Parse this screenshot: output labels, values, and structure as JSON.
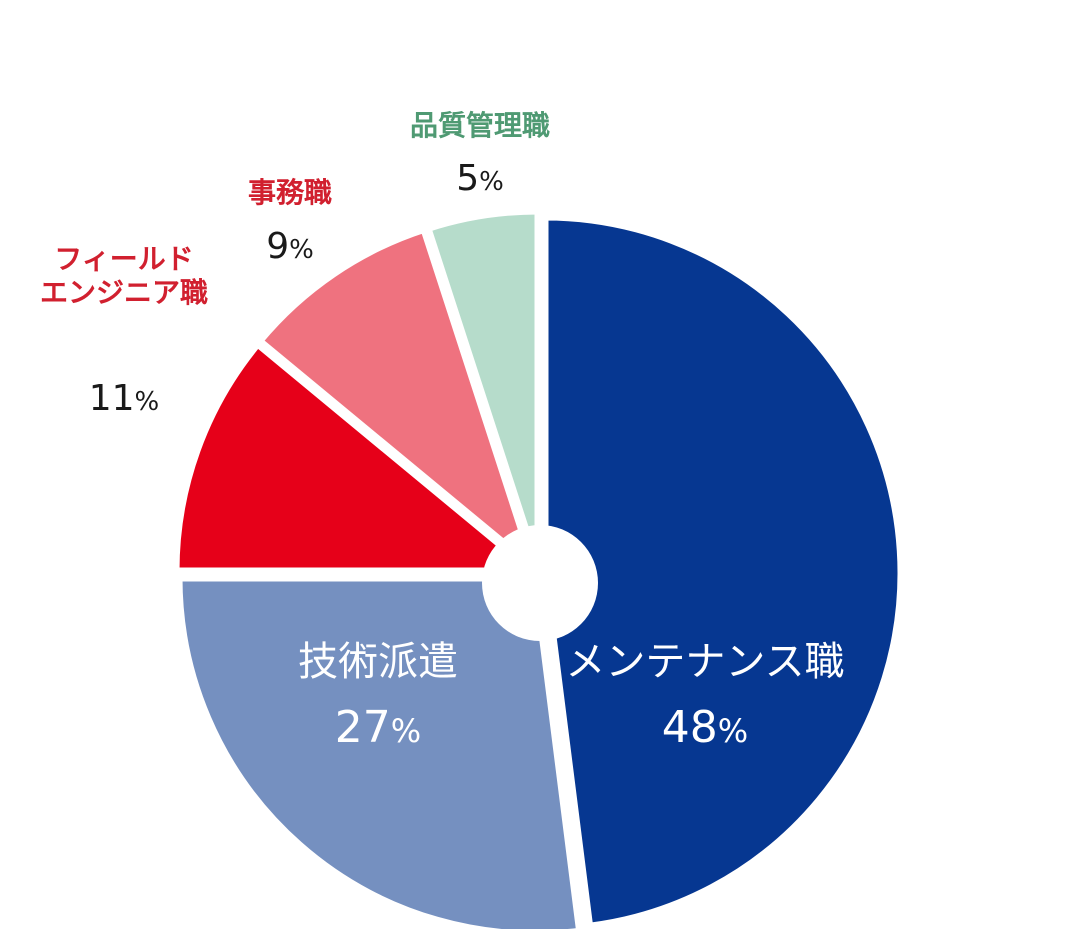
{
  "chart_data": {
    "type": "pie",
    "series": [
      {
        "values": [
          {
            "label": "メンテナンス職",
            "value": 48,
            "pct_text": "48",
            "color": "#063791"
          },
          {
            "label": "技術派遣",
            "value": 27,
            "pct_text": "27",
            "color": "#7590c0"
          },
          {
            "label": "フィールドエンジニア職",
            "label_lines": [
              "フィールド",
              "エンジニア職"
            ],
            "value": 11,
            "pct_text": "11",
            "color": "#e60019"
          },
          {
            "label": "事務職",
            "value": 9,
            "pct_text": "9",
            "color": "#ef727f"
          },
          {
            "label": "品質管理職",
            "value": 5,
            "pct_text": "5",
            "color": "#b6dccb"
          }
        ]
      }
    ],
    "percent_sign": "%",
    "label_colors": {
      "フィールドエンジニア職": "#d1202f",
      "事務職": "#d1202f",
      "品質管理職": "#4f9a73",
      "percent_outside": "#1a1a1a"
    },
    "legend": "none",
    "center_hole": true
  }
}
